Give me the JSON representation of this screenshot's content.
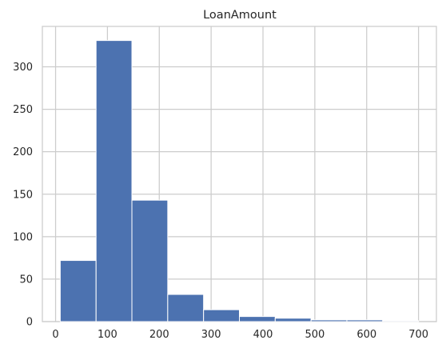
{
  "chart_data": {
    "type": "bar",
    "title": "LoanAmount",
    "xlabel": "",
    "ylabel": "",
    "bins": [
      {
        "start": 9.0,
        "end": 78.1,
        "count": 72
      },
      {
        "start": 78.1,
        "end": 147.2,
        "count": 331
      },
      {
        "start": 147.2,
        "end": 216.3,
        "count": 143
      },
      {
        "start": 216.3,
        "end": 285.4,
        "count": 32
      },
      {
        "start": 285.4,
        "end": 354.5,
        "count": 14
      },
      {
        "start": 354.5,
        "end": 423.6,
        "count": 6
      },
      {
        "start": 423.6,
        "end": 492.7,
        "count": 4
      },
      {
        "start": 492.7,
        "end": 561.8,
        "count": 2
      },
      {
        "start": 561.8,
        "end": 630.9,
        "count": 2
      },
      {
        "start": 630.9,
        "end": 700.0,
        "count": 1
      }
    ],
    "xlim": [
      -25.5,
      734.5
    ],
    "ylim": [
      0,
      347.6
    ],
    "x_ticks": [
      0,
      100,
      200,
      300,
      400,
      500,
      600,
      700
    ],
    "x_tick_labels": [
      "0",
      "100",
      "200",
      "300",
      "400",
      "500",
      "600",
      "700"
    ],
    "y_ticks": [
      0,
      50,
      100,
      150,
      200,
      250,
      300
    ],
    "y_tick_labels": [
      "0",
      "50",
      "100",
      "150",
      "200",
      "250",
      "300"
    ],
    "grid": true,
    "bar_color": "#4c72b0",
    "grid_color": "#cccccc",
    "background_color": "#ffffff"
  }
}
